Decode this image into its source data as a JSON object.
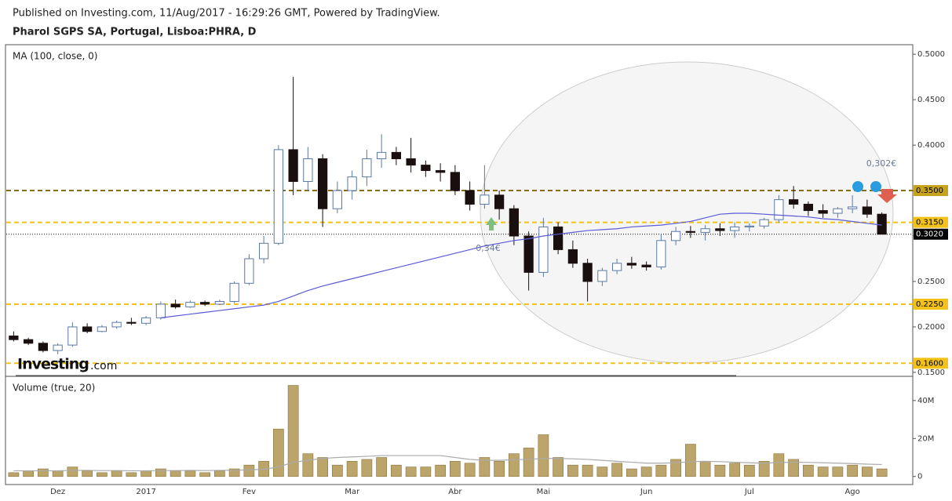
{
  "header": {
    "published": "Published on Investing.com, 11/Aug/2017 - 16:29:26 GMT, Powered by TradingView.",
    "symbol": "Pharol SGPS SA, Portugal, Lisboa:PHRA, D",
    "logo_main": "Investing",
    "logo_suffix": ".com"
  },
  "chart_data": [
    {
      "type": "candlestick",
      "title": "MA (100, close, 0)",
      "categories": [
        null,
        null,
        null,
        "Dez",
        null,
        null,
        null,
        null,
        null,
        "2017",
        null,
        null,
        null,
        null,
        null,
        null,
        "Fev",
        null,
        null,
        null,
        null,
        null,
        null,
        "Mar",
        null,
        null,
        null,
        null,
        null,
        null,
        "Abr",
        null,
        null,
        null,
        null,
        null,
        "Mai",
        null,
        null,
        null,
        null,
        null,
        null,
        "Jun",
        null,
        null,
        null,
        null,
        null,
        null,
        "Jul",
        null,
        null,
        null,
        null,
        null,
        null,
        "Ago",
        null,
        null
      ],
      "open": [
        0.19,
        0.186,
        0.182,
        0.174,
        0.18,
        0.2,
        0.195,
        0.2,
        0.205,
        0.204,
        0.21,
        0.225,
        0.222,
        0.227,
        0.225,
        0.228,
        0.248,
        0.275,
        0.292,
        0.395,
        0.36,
        0.385,
        0.33,
        0.35,
        0.365,
        0.385,
        0.392,
        0.385,
        0.378,
        0.372,
        0.37,
        0.35,
        0.335,
        0.345,
        0.33,
        0.3,
        0.26,
        0.31,
        0.285,
        0.27,
        0.25,
        0.262,
        0.27,
        0.268,
        0.266,
        0.295,
        0.305,
        0.304,
        0.308,
        0.306,
        0.31,
        0.311,
        0.318,
        0.34,
        0.335,
        0.328,
        0.325,
        0.33,
        0.332,
        0.324
      ],
      "high": [
        0.195,
        0.188,
        0.184,
        0.182,
        0.205,
        0.204,
        0.202,
        0.207,
        0.21,
        0.212,
        0.228,
        0.23,
        0.229,
        0.229,
        0.23,
        0.25,
        0.28,
        0.3,
        0.4,
        0.475,
        0.398,
        0.39,
        0.36,
        0.372,
        0.395,
        0.412,
        0.398,
        0.408,
        0.383,
        0.38,
        0.378,
        0.36,
        0.378,
        0.35,
        0.334,
        0.305,
        0.32,
        0.315,
        0.295,
        0.275,
        0.265,
        0.275,
        0.277,
        0.272,
        0.302,
        0.31,
        0.311,
        0.312,
        0.314,
        0.315,
        0.314,
        0.32,
        0.345,
        0.355,
        0.338,
        0.335,
        0.332,
        0.345,
        0.34,
        0.326
      ],
      "low": [
        0.184,
        0.18,
        0.172,
        0.17,
        0.178,
        0.193,
        0.194,
        0.198,
        0.202,
        0.202,
        0.208,
        0.22,
        0.221,
        0.223,
        0.224,
        0.226,
        0.246,
        0.27,
        0.29,
        0.345,
        0.35,
        0.31,
        0.325,
        0.34,
        0.355,
        0.375,
        0.378,
        0.37,
        0.365,
        0.36,
        0.345,
        0.328,
        0.33,
        0.318,
        0.29,
        0.24,
        0.255,
        0.28,
        0.265,
        0.228,
        0.245,
        0.258,
        0.264,
        0.262,
        0.263,
        0.29,
        0.298,
        0.295,
        0.3,
        0.298,
        0.305,
        0.308,
        0.315,
        0.33,
        0.322,
        0.32,
        0.32,
        0.325,
        0.32,
        0.302
      ],
      "close": [
        0.186,
        0.182,
        0.174,
        0.18,
        0.2,
        0.195,
        0.2,
        0.205,
        0.204,
        0.21,
        0.225,
        0.222,
        0.227,
        0.225,
        0.228,
        0.248,
        0.275,
        0.292,
        0.395,
        0.36,
        0.385,
        0.33,
        0.35,
        0.365,
        0.385,
        0.392,
        0.385,
        0.378,
        0.372,
        0.37,
        0.35,
        0.335,
        0.345,
        0.33,
        0.3,
        0.26,
        0.31,
        0.285,
        0.27,
        0.25,
        0.262,
        0.27,
        0.268,
        0.266,
        0.295,
        0.305,
        0.304,
        0.308,
        0.306,
        0.31,
        0.311,
        0.318,
        0.34,
        0.335,
        0.328,
        0.325,
        0.33,
        0.332,
        0.324,
        0.302
      ],
      "up_color": "#ffffff",
      "up_stroke": "#5a79a5",
      "down_color": "#1a0f0f",
      "ma": {
        "color": "#5b5bd6",
        "values": [
          null,
          null,
          null,
          null,
          null,
          null,
          null,
          null,
          null,
          null,
          0.21,
          0.212,
          0.214,
          0.216,
          0.218,
          0.22,
          0.222,
          0.224,
          0.228,
          0.234,
          0.24,
          0.245,
          0.249,
          0.253,
          0.257,
          0.261,
          0.265,
          0.269,
          0.273,
          0.277,
          0.281,
          0.285,
          0.289,
          0.292,
          0.295,
          0.297,
          0.3,
          0.302,
          0.304,
          0.306,
          0.307,
          0.308,
          0.31,
          0.311,
          0.312,
          0.314,
          0.316,
          0.32,
          0.324,
          0.325,
          0.325,
          0.324,
          0.323,
          0.322,
          0.321,
          0.319,
          0.318,
          0.316,
          0.314,
          0.312
        ]
      },
      "ylim": [
        0.1456,
        0.5105
      ],
      "yticks": [
        {
          "value": 0.15,
          "label": "0.1500"
        },
        {
          "value": 0.2,
          "label": "0.2000"
        },
        {
          "value": 0.25,
          "label": "0.2500"
        },
        {
          "value": 0.3,
          "label": "0.3000"
        },
        {
          "value": 0.35,
          "label": "0.3500"
        },
        {
          "value": 0.4,
          "label": "0.4000"
        },
        {
          "value": 0.45,
          "label": "0.4500"
        },
        {
          "value": 0.5,
          "label": "0.5000"
        }
      ],
      "levels": [
        {
          "value": 0.35,
          "label": "0.3500",
          "color": "#8a6d12",
          "box": "#c7a21d",
          "text_color": "#000000",
          "style": "dash"
        },
        {
          "value": 0.315,
          "label": "0.3150",
          "color": "#f2c21b",
          "box": "#f2c21b",
          "text_color": "#000000",
          "style": "dash"
        },
        {
          "value": 0.302,
          "label": "0.3020",
          "color": "#000000",
          "box": "#000000",
          "text_color": "#ffffff",
          "style": "dot"
        },
        {
          "value": 0.225,
          "label": "0.2250",
          "color": "#f2c21b",
          "box": "#f2c21b",
          "text_color": "#000000",
          "style": "dash"
        },
        {
          "value": 0.16,
          "label": "0.1600",
          "color": "#f2c21b",
          "box": "#f2c21b",
          "text_color": "#000000",
          "style": "dash"
        }
      ],
      "annotations": [
        "0,302€",
        "0,34€"
      ]
    },
    {
      "type": "bar",
      "title": "Volume (true, 20)",
      "color": "#bba56a",
      "values": [
        2000000,
        3000000,
        4000000,
        3000000,
        5000000,
        3000000,
        2000000,
        3000000,
        2000000,
        3000000,
        4000000,
        3000000,
        3000000,
        2000000,
        3000000,
        4000000,
        6000000,
        8000000,
        25000000,
        48000000,
        12000000,
        10000000,
        6000000,
        8000000,
        9000000,
        10000000,
        6000000,
        5000000,
        5000000,
        6000000,
        8000000,
        7000000,
        10000000,
        8000000,
        12000000,
        15000000,
        22000000,
        10000000,
        6000000,
        6000000,
        5000000,
        7000000,
        4000000,
        5000000,
        6000000,
        9000000,
        17000000,
        8000000,
        6000000,
        7000000,
        6000000,
        8000000,
        12000000,
        9000000,
        6000000,
        5000000,
        5000000,
        6000000,
        5000000,
        4000000
      ],
      "ma": {
        "color": "#aaaaaa",
        "values": [
          3000000,
          3000000,
          3000000,
          3000000,
          3200000,
          3200000,
          3100000,
          3100000,
          3000000,
          3000000,
          3100000,
          3100000,
          3200000,
          3100000,
          3200000,
          3300000,
          3500000,
          3800000,
          5000000,
          7500000,
          8500000,
          9500000,
          10000000,
          10300000,
          10600000,
          11000000,
          11000000,
          11000000,
          11000000,
          11000000,
          10000000,
          9000000,
          8500000,
          8500000,
          8800000,
          9000000,
          9500000,
          9500000,
          9300000,
          9000000,
          8500000,
          8000000,
          7500000,
          7000000,
          7000000,
          7200000,
          7800000,
          8000000,
          7800000,
          7500000,
          7200000,
          7000000,
          7300000,
          7500000,
          7400000,
          7200000,
          7000000,
          6800000,
          6500000,
          6300000
        ]
      },
      "ylim": [
        -4255000,
        52770000
      ],
      "yticks": [
        0,
        {
          "value": 20000000,
          "label": "20M"
        },
        {
          "value": 40000000,
          "label": "40M"
        }
      ]
    }
  ]
}
